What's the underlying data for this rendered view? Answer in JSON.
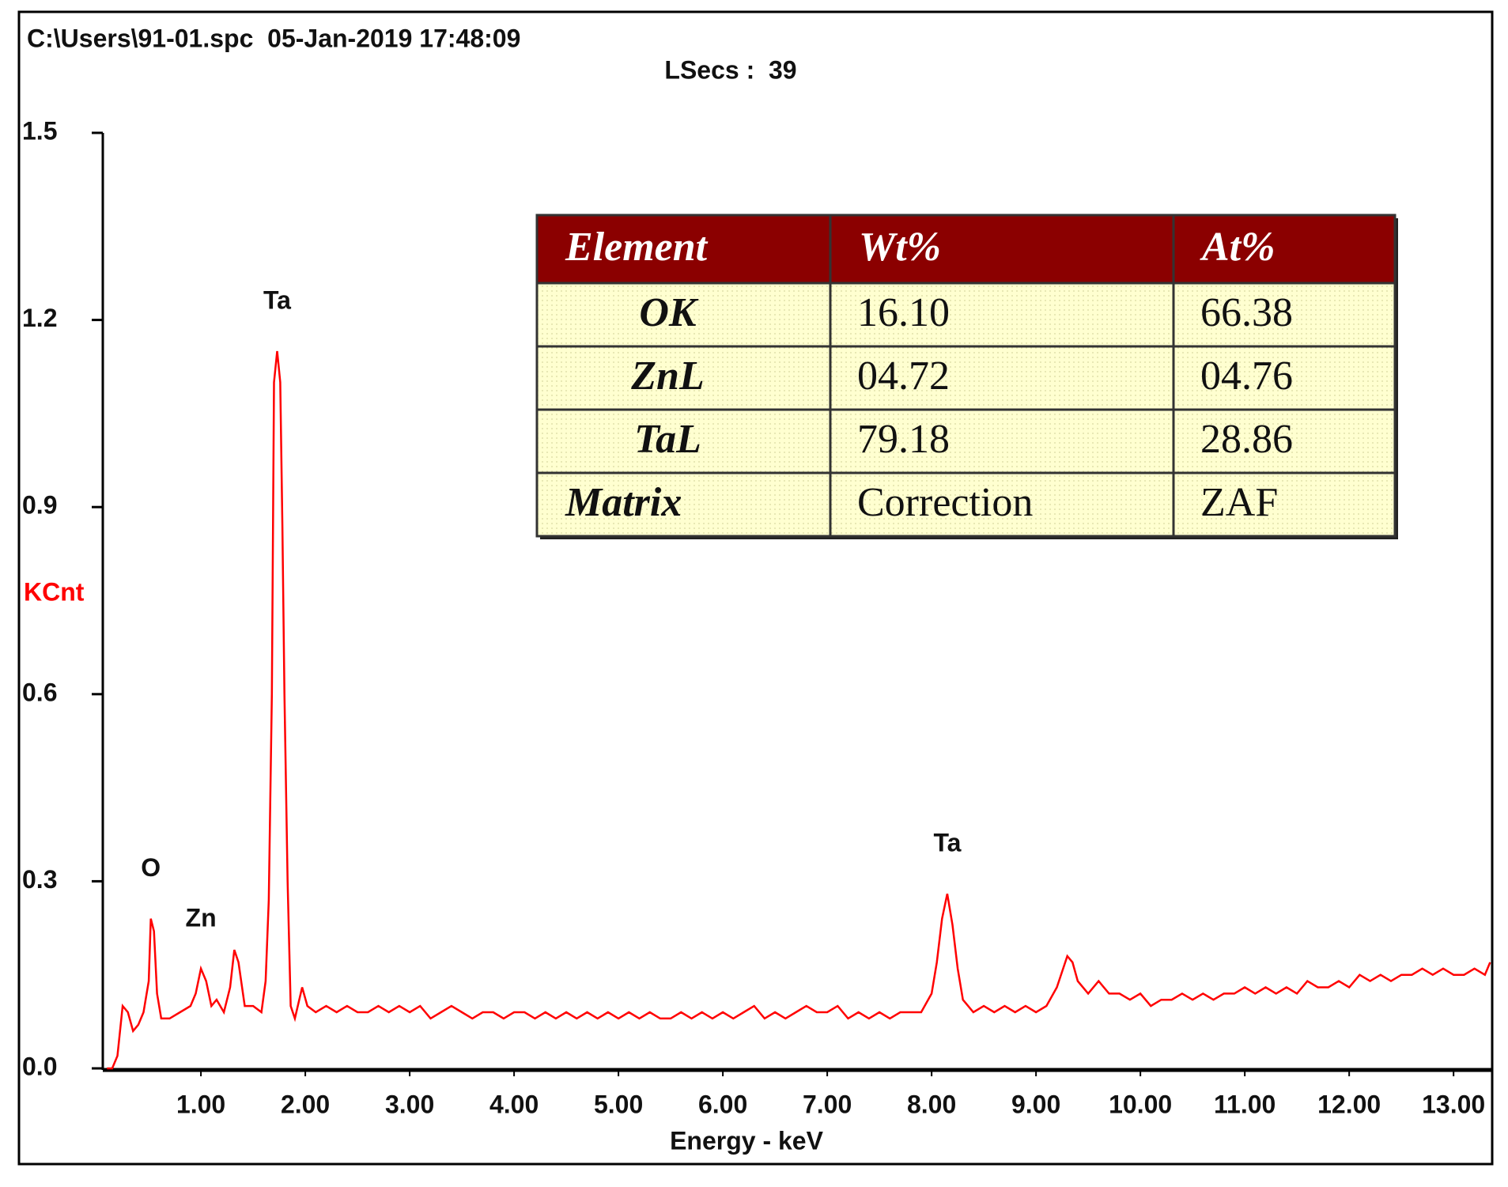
{
  "chart_data": {
    "type": "line",
    "title": "C:\\Users\\91-01.spc  05-Jan-2019 17:48:09",
    "subtitle": "LSecs :  39",
    "y_label": "KCnt",
    "x_label": "Energy - keV",
    "color": "#ff0000",
    "xlim": [
      0.06,
      13.37
    ],
    "ylim": [
      0,
      1.5
    ],
    "xticks": [
      {
        "value": 1,
        "label": "1.00"
      },
      {
        "value": 2,
        "label": "2.00"
      },
      {
        "value": 3,
        "label": "3.00"
      },
      {
        "value": 4,
        "label": "4.00"
      },
      {
        "value": 5,
        "label": "5.00"
      },
      {
        "value": 6,
        "label": "6.00"
      },
      {
        "value": 7,
        "label": "7.00"
      },
      {
        "value": 8,
        "label": "8.00"
      },
      {
        "value": 9,
        "label": "9.00"
      },
      {
        "value": 10,
        "label": "10.00"
      },
      {
        "value": 11,
        "label": "11.00"
      },
      {
        "value": 12,
        "label": "12.00"
      },
      {
        "value": 13,
        "label": "13.00"
      }
    ],
    "yticks": [
      {
        "value": 0,
        "label": "0.0"
      },
      0.3,
      0.6,
      0.9,
      1.2,
      1.5
    ],
    "annotations": [
      {
        "text": "O",
        "x": 0.52
      },
      {
        "text": "Zn",
        "x": 1.0
      },
      {
        "text": "Ta",
        "x": 1.73
      },
      {
        "text": "Ta",
        "x": 8.15
      }
    ],
    "x": [
      0.1,
      0.15,
      0.2,
      0.25,
      0.3,
      0.35,
      0.4,
      0.45,
      0.5,
      0.52,
      0.55,
      0.58,
      0.62,
      0.7,
      0.8,
      0.9,
      0.95,
      1.0,
      1.05,
      1.1,
      1.15,
      1.22,
      1.28,
      1.32,
      1.36,
      1.42,
      1.5,
      1.58,
      1.62,
      1.65,
      1.68,
      1.7,
      1.73,
      1.76,
      1.78,
      1.8,
      1.83,
      1.86,
      1.9,
      1.97,
      2.02,
      2.1,
      2.2,
      2.3,
      2.4,
      2.5,
      2.6,
      2.7,
      2.8,
      2.9,
      3.0,
      3.1,
      3.2,
      3.3,
      3.4,
      3.5,
      3.6,
      3.7,
      3.8,
      3.9,
      4.0,
      4.1,
      4.2,
      4.3,
      4.4,
      4.5,
      4.6,
      4.7,
      4.8,
      4.9,
      5.0,
      5.1,
      5.2,
      5.3,
      5.4,
      5.5,
      5.6,
      5.7,
      5.8,
      5.9,
      6.0,
      6.1,
      6.2,
      6.3,
      6.4,
      6.5,
      6.6,
      6.7,
      6.8,
      6.9,
      7.0,
      7.1,
      7.2,
      7.3,
      7.4,
      7.5,
      7.6,
      7.7,
      7.8,
      7.9,
      8.0,
      8.05,
      8.1,
      8.15,
      8.2,
      8.25,
      8.3,
      8.4,
      8.5,
      8.6,
      8.7,
      8.8,
      8.9,
      9.0,
      9.1,
      9.2,
      9.3,
      9.35,
      9.4,
      9.5,
      9.6,
      9.7,
      9.8,
      9.9,
      10.0,
      10.1,
      10.2,
      10.3,
      10.4,
      10.5,
      10.6,
      10.7,
      10.8,
      10.9,
      11.0,
      11.1,
      11.2,
      11.3,
      11.4,
      11.5,
      11.6,
      11.7,
      11.8,
      11.9,
      12.0,
      12.1,
      12.2,
      12.3,
      12.4,
      12.5,
      12.6,
      12.7,
      12.8,
      12.9,
      13.0,
      13.1,
      13.2,
      13.3,
      13.35
    ],
    "values": [
      0,
      0,
      0.02,
      0.1,
      0.09,
      0.06,
      0.07,
      0.09,
      0.14,
      0.24,
      0.22,
      0.12,
      0.08,
      0.08,
      0.09,
      0.1,
      0.12,
      0.16,
      0.14,
      0.1,
      0.11,
      0.09,
      0.13,
      0.19,
      0.17,
      0.1,
      0.1,
      0.09,
      0.14,
      0.27,
      0.6,
      1.1,
      1.15,
      1.1,
      0.87,
      0.6,
      0.3,
      0.1,
      0.08,
      0.13,
      0.1,
      0.09,
      0.1,
      0.09,
      0.1,
      0.09,
      0.09,
      0.1,
      0.09,
      0.1,
      0.09,
      0.1,
      0.08,
      0.09,
      0.1,
      0.09,
      0.08,
      0.09,
      0.09,
      0.08,
      0.09,
      0.09,
      0.08,
      0.09,
      0.08,
      0.09,
      0.08,
      0.09,
      0.08,
      0.09,
      0.08,
      0.09,
      0.08,
      0.09,
      0.08,
      0.08,
      0.09,
      0.08,
      0.09,
      0.08,
      0.09,
      0.08,
      0.09,
      0.1,
      0.08,
      0.09,
      0.08,
      0.09,
      0.1,
      0.09,
      0.09,
      0.1,
      0.08,
      0.09,
      0.08,
      0.09,
      0.08,
      0.09,
      0.09,
      0.09,
      0.12,
      0.17,
      0.24,
      0.28,
      0.23,
      0.16,
      0.11,
      0.09,
      0.1,
      0.09,
      0.1,
      0.09,
      0.1,
      0.09,
      0.1,
      0.13,
      0.18,
      0.17,
      0.14,
      0.12,
      0.14,
      0.12,
      0.12,
      0.11,
      0.12,
      0.1,
      0.11,
      0.11,
      0.12,
      0.11,
      0.12,
      0.11,
      0.12,
      0.12,
      0.13,
      0.12,
      0.13,
      0.12,
      0.13,
      0.12,
      0.14,
      0.13,
      0.13,
      0.14,
      0.13,
      0.15,
      0.14,
      0.15,
      0.14,
      0.15,
      0.15,
      0.16,
      0.15,
      0.16,
      0.15,
      0.15,
      0.16,
      0.15,
      0.17
    ]
  },
  "table": {
    "header": [
      "Element",
      "Wt%",
      "At%"
    ],
    "rows": [
      [
        "OK",
        "16.10",
        "66.38"
      ],
      [
        "ZnL",
        "04.72",
        "04.76"
      ],
      [
        "TaL",
        "79.18",
        "28.86"
      ],
      [
        "Matrix",
        "Correction",
        "ZAF"
      ]
    ]
  }
}
